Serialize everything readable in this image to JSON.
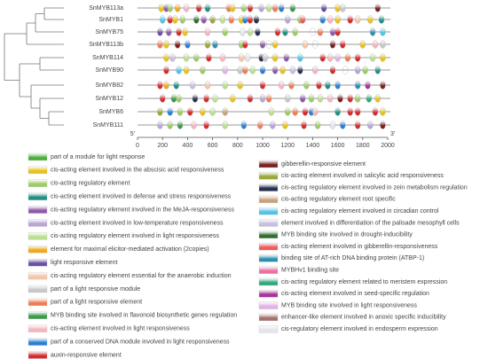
{
  "genes": [
    {
      "name": "SnMYB113a",
      "elements": [
        [
          190,
          1
        ],
        [
          230,
          4
        ],
        [
          260,
          2
        ],
        [
          320,
          7
        ],
        [
          390,
          13
        ],
        [
          490,
          15
        ],
        [
          560,
          3
        ],
        [
          730,
          11
        ],
        [
          760,
          1
        ],
        [
          850,
          2
        ],
        [
          900,
          15
        ],
        [
          990,
          5
        ],
        [
          1050,
          6
        ],
        [
          1100,
          11
        ],
        [
          1150,
          14
        ],
        [
          1240,
          12
        ],
        [
          1490,
          8
        ],
        [
          1600,
          1
        ],
        [
          1640,
          10
        ],
        [
          1920,
          16
        ]
      ]
    },
    {
      "name": "SnMYB1",
      "elements": [
        [
          200,
          20
        ],
        [
          260,
          15
        ],
        [
          300,
          1
        ],
        [
          360,
          2
        ],
        [
          470,
          22
        ],
        [
          530,
          4
        ],
        [
          600,
          17
        ],
        [
          680,
          6
        ],
        [
          750,
          11
        ],
        [
          830,
          1
        ],
        [
          860,
          14
        ],
        [
          900,
          15
        ],
        [
          950,
          18
        ],
        [
          1200,
          5
        ],
        [
          1300,
          2
        ],
        [
          1320,
          23
        ],
        [
          1480,
          14
        ],
        [
          1540,
          13
        ],
        [
          1600,
          1
        ],
        [
          1700,
          15
        ],
        [
          1760,
          9
        ],
        [
          1860,
          1
        ],
        [
          1950,
          3
        ]
      ]
    },
    {
      "name": "SnMYB75",
      "elements": [
        [
          180,
          8
        ],
        [
          250,
          4
        ],
        [
          330,
          15
        ],
        [
          380,
          1
        ],
        [
          560,
          13
        ],
        [
          700,
          2
        ],
        [
          840,
          30
        ],
        [
          900,
          6
        ],
        [
          960,
          18
        ],
        [
          1120,
          15
        ],
        [
          1180,
          3
        ],
        [
          1260,
          2
        ],
        [
          1400,
          32
        ],
        [
          1460,
          11
        ],
        [
          1560,
          4
        ],
        [
          1600,
          15
        ],
        [
          1880,
          24
        ],
        [
          1960,
          20
        ]
      ]
    },
    {
      "name": "SnMYB113b",
      "elements": [
        [
          180,
          11
        ],
        [
          230,
          1
        ],
        [
          320,
          16
        ],
        [
          400,
          14
        ],
        [
          560,
          17
        ],
        [
          620,
          24
        ],
        [
          830,
          2
        ],
        [
          860,
          15
        ],
        [
          1000,
          4
        ],
        [
          1050,
          32
        ],
        [
          1100,
          1
        ],
        [
          1340,
          9
        ],
        [
          1420,
          31
        ],
        [
          1560,
          16
        ],
        [
          1640,
          15
        ],
        [
          1800,
          1
        ],
        [
          1900,
          13
        ],
        [
          1960,
          10
        ]
      ]
    },
    {
      "name": "SnMYB114",
      "elements": [
        [
          230,
          1
        ],
        [
          280,
          21
        ],
        [
          390,
          6
        ],
        [
          470,
          2
        ],
        [
          570,
          15
        ],
        [
          680,
          13
        ],
        [
          830,
          9
        ],
        [
          880,
          30
        ],
        [
          990,
          18
        ],
        [
          1020,
          10
        ],
        [
          1100,
          1
        ],
        [
          1190,
          4
        ],
        [
          1300,
          20
        ],
        [
          1480,
          15
        ],
        [
          1540,
          13
        ],
        [
          1600,
          28
        ],
        [
          1680,
          11
        ],
        [
          1760,
          15
        ],
        [
          1880,
          6
        ],
        [
          1960,
          1
        ]
      ]
    },
    {
      "name": "SnMYB90",
      "elements": [
        [
          230,
          15
        ],
        [
          330,
          20
        ],
        [
          390,
          1
        ],
        [
          520,
          2
        ],
        [
          700,
          28
        ],
        [
          820,
          10
        ],
        [
          860,
          11
        ],
        [
          920,
          6
        ],
        [
          1000,
          14
        ],
        [
          1100,
          4
        ],
        [
          1160,
          1
        ],
        [
          1240,
          21
        ],
        [
          1300,
          18
        ],
        [
          1420,
          13
        ],
        [
          1560,
          15
        ],
        [
          1660,
          31
        ],
        [
          1760,
          5
        ],
        [
          1820,
          2
        ],
        [
          1920,
          3
        ]
      ]
    },
    {
      "name": "SnMYB82",
      "elements": [
        [
          180,
          15
        ],
        [
          230,
          7
        ],
        [
          310,
          3
        ],
        [
          440,
          21
        ],
        [
          560,
          9
        ],
        [
          700,
          6
        ],
        [
          820,
          1
        ],
        [
          1000,
          15
        ],
        [
          1150,
          13
        ],
        [
          1230,
          11
        ],
        [
          1350,
          2
        ],
        [
          1450,
          15
        ],
        [
          1520,
          3
        ],
        [
          1600,
          14
        ],
        [
          1760,
          24
        ],
        [
          1840,
          27
        ],
        [
          1960,
          16
        ]
      ]
    },
    {
      "name": "SnMYB12",
      "elements": [
        [
          200,
          15
        ],
        [
          290,
          12
        ],
        [
          330,
          2
        ],
        [
          460,
          18
        ],
        [
          550,
          15
        ],
        [
          620,
          6
        ],
        [
          760,
          1
        ],
        [
          900,
          15
        ],
        [
          1000,
          5
        ],
        [
          1050,
          11
        ],
        [
          1200,
          10
        ],
        [
          1320,
          4
        ],
        [
          1390,
          2
        ],
        [
          1460,
          6
        ],
        [
          1540,
          13
        ],
        [
          1620,
          16
        ],
        [
          1700,
          15
        ],
        [
          1760,
          2
        ],
        [
          1850,
          26
        ],
        [
          1920,
          1
        ]
      ]
    },
    {
      "name": "SnMYB6",
      "elements": [
        [
          180,
          17
        ],
        [
          260,
          14
        ],
        [
          340,
          2
        ],
        [
          420,
          15
        ],
        [
          520,
          1
        ],
        [
          600,
          6
        ],
        [
          700,
          19
        ],
        [
          1070,
          6
        ],
        [
          1200,
          2
        ],
        [
          1260,
          11
        ],
        [
          1340,
          15
        ],
        [
          1390,
          14
        ],
        [
          1420,
          13
        ],
        [
          1600,
          3
        ],
        [
          1700,
          15
        ],
        [
          1760,
          15
        ],
        [
          1900,
          15
        ],
        [
          1960,
          1
        ]
      ]
    },
    {
      "name": "SnMYB111",
      "elements": [
        [
          180,
          5
        ],
        [
          260,
          2
        ],
        [
          340,
          12
        ],
        [
          450,
          13
        ],
        [
          550,
          15
        ],
        [
          700,
          6
        ],
        [
          850,
          14
        ],
        [
          980,
          11
        ],
        [
          1080,
          5
        ],
        [
          1180,
          1
        ],
        [
          1330,
          15
        ],
        [
          1440,
          2
        ],
        [
          1560,
          30
        ],
        [
          1640,
          14
        ],
        [
          1760,
          15
        ],
        [
          1860,
          5
        ],
        [
          1960,
          16
        ]
      ]
    }
  ],
  "axis": {
    "start": "5'",
    "end": "3'",
    "lim": [
      0,
      2000
    ],
    "ticks": [
      0,
      200,
      400,
      600,
      800,
      1000,
      1200,
      1400,
      1600,
      1800,
      2000
    ]
  },
  "legend": [
    {
      "label": "part of a module for light response",
      "color": "#4caf3c"
    },
    {
      "label": "cis-acting element involved in the abscisic acid responsiveness",
      "color": "#e8c21a"
    },
    {
      "label": "cis-acting regulatory element",
      "color": "#9ccc65"
    },
    {
      "label": "cis-acting element involved in defense and stress responsiveness",
      "color": "#1f8f84"
    },
    {
      "label": "cis-acting regulatory element involved in the MeJA-responsiveness",
      "color": "#8e5aa8"
    },
    {
      "label": "cis-acting element involved in low-temperature responsiveness",
      "color": "#b7a6d6"
    },
    {
      "label": "cis-acting regulatory element involved in light responsiveness",
      "color": "#b9df8f"
    },
    {
      "label": "element for maximal elicitor-mediated activation (2copies)",
      "color": "#f0a81c"
    },
    {
      "label": "light responsive element",
      "color": "#6a4fa3"
    },
    {
      "label": "cis-acting regulatory element essential for the anaerobic induction",
      "color": "#f6c6a8"
    },
    {
      "label": "part of a light responsive module",
      "color": "#c8c8c8"
    },
    {
      "label": "part of a light responsive element",
      "color": "#ee7d55"
    },
    {
      "label": "MYB binding site involved in flavonoid biosynthetic genes regulation",
      "color": "#3a9a4a"
    },
    {
      "label": "cis-acting element involved in light responsiveness",
      "color": "#f4b6c0"
    },
    {
      "label": "part of a conserved DNA module involved in light responsiveness",
      "color": "#2a7fd4"
    },
    {
      "label": "auxin-responsive element",
      "color": "#d42c2c"
    },
    {
      "label": "gibberellin-responsive element",
      "color": "#7a2020"
    },
    {
      "label": "cis-acting element involved in salicylic acid responsiveness",
      "color": "#98a83a"
    },
    {
      "label": "cis-acting regulatory element involved in zein metabolism regulation",
      "color": "#27304f"
    },
    {
      "label": "cis-acting regulatory element root specific",
      "color": "#c9a27a"
    },
    {
      "label": "cis-acting regulatory element involved in circadian control",
      "color": "#4fc3e8"
    },
    {
      "label": "element involved in differentiation of the palisade mesophyll cells",
      "color": "#c6c0e0"
    },
    {
      "label": "MYB binding site involved in drought-inducibility",
      "color": "#2d6e2d"
    },
    {
      "label": "cis-acting element involved in gibberellin-responsiveness",
      "color": "#ef5a5a"
    },
    {
      "label": "binding site of AT-rich DNA binding protein (ATBP-1)",
      "color": "#2a8fb0"
    },
    {
      "label": "MYBHv1 binding site",
      "color": "#ec6fa0"
    },
    {
      "label": "cis-acting regulatory element related to meristem expression",
      "color": "#2eaa7a"
    },
    {
      "label": "cis-acting element involved in seed-specific regulation",
      "color": "#a8329a"
    },
    {
      "label": "MYB binding site involved in light responsiveness",
      "color": "#e3b2e6"
    },
    {
      "label": "enhancer-like element involved in anoxic specific inducibility",
      "color": "#a5706e"
    },
    {
      "label": "cis-regulatory element involved in endosperm expression",
      "color": "#e4e4ec"
    }
  ]
}
